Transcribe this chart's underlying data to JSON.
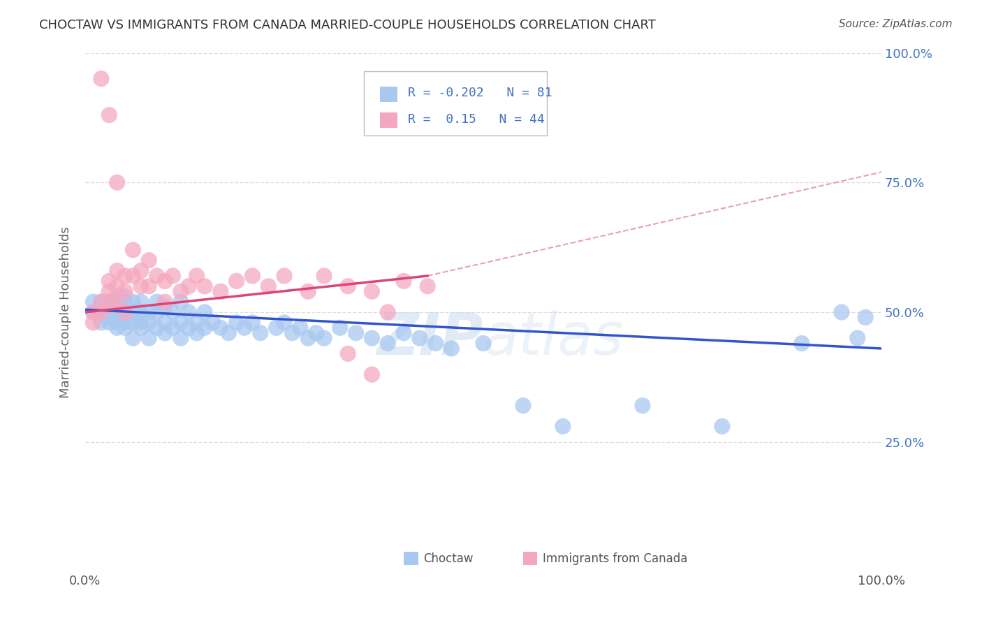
{
  "title": "CHOCTAW VS IMMIGRANTS FROM CANADA MARRIED-COUPLE HOUSEHOLDS CORRELATION CHART",
  "source": "Source: ZipAtlas.com",
  "ylabel": "Married-couple Households",
  "xmin": 0.0,
  "xmax": 1.0,
  "ymin": 0.0,
  "ymax": 1.0,
  "blue_R": -0.202,
  "blue_N": 81,
  "pink_R": 0.15,
  "pink_N": 44,
  "blue_color": "#A8C8F0",
  "pink_color": "#F4A8C0",
  "blue_line_color": "#3355CC",
  "pink_line_color": "#DD4477",
  "dashed_line_color": "#E8A0B0",
  "background_color": "#FFFFFF",
  "grid_color": "#DDDDDD",
  "title_color": "#333333",
  "legend_text_color": "#4472C4",
  "watermark": "ZIPatlas",
  "blue_scatter_x": [
    0.01,
    0.01,
    0.02,
    0.02,
    0.02,
    0.03,
    0.03,
    0.03,
    0.03,
    0.03,
    0.04,
    0.04,
    0.04,
    0.04,
    0.04,
    0.04,
    0.05,
    0.05,
    0.05,
    0.05,
    0.05,
    0.05,
    0.06,
    0.06,
    0.06,
    0.06,
    0.07,
    0.07,
    0.07,
    0.07,
    0.08,
    0.08,
    0.08,
    0.09,
    0.09,
    0.09,
    0.1,
    0.1,
    0.1,
    0.11,
    0.11,
    0.12,
    0.12,
    0.12,
    0.13,
    0.13,
    0.14,
    0.14,
    0.15,
    0.15,
    0.16,
    0.17,
    0.18,
    0.19,
    0.2,
    0.21,
    0.22,
    0.24,
    0.25,
    0.26,
    0.27,
    0.28,
    0.29,
    0.3,
    0.32,
    0.34,
    0.36,
    0.38,
    0.4,
    0.42,
    0.44,
    0.46,
    0.5,
    0.55,
    0.6,
    0.7,
    0.8,
    0.9,
    0.95,
    0.97,
    0.98
  ],
  "blue_scatter_y": [
    0.5,
    0.52,
    0.5,
    0.52,
    0.48,
    0.51,
    0.49,
    0.52,
    0.48,
    0.5,
    0.53,
    0.5,
    0.48,
    0.52,
    0.5,
    0.47,
    0.52,
    0.5,
    0.48,
    0.53,
    0.47,
    0.5,
    0.52,
    0.48,
    0.5,
    0.45,
    0.52,
    0.48,
    0.5,
    0.47,
    0.5,
    0.48,
    0.45,
    0.5,
    0.47,
    0.52,
    0.48,
    0.51,
    0.46,
    0.5,
    0.47,
    0.52,
    0.48,
    0.45,
    0.5,
    0.47,
    0.48,
    0.46,
    0.5,
    0.47,
    0.48,
    0.47,
    0.46,
    0.48,
    0.47,
    0.48,
    0.46,
    0.47,
    0.48,
    0.46,
    0.47,
    0.45,
    0.46,
    0.45,
    0.47,
    0.46,
    0.45,
    0.44,
    0.46,
    0.45,
    0.44,
    0.43,
    0.44,
    0.32,
    0.28,
    0.32,
    0.28,
    0.44,
    0.5,
    0.45,
    0.49
  ],
  "pink_scatter_x": [
    0.01,
    0.01,
    0.02,
    0.02,
    0.03,
    0.03,
    0.03,
    0.04,
    0.04,
    0.04,
    0.05,
    0.05,
    0.05,
    0.06,
    0.06,
    0.07,
    0.07,
    0.08,
    0.08,
    0.09,
    0.1,
    0.1,
    0.11,
    0.12,
    0.13,
    0.14,
    0.15,
    0.17,
    0.19,
    0.21,
    0.23,
    0.25,
    0.28,
    0.3,
    0.33,
    0.36,
    0.4,
    0.43,
    0.02,
    0.03,
    0.04,
    0.33,
    0.36,
    0.38
  ],
  "pink_scatter_y": [
    0.5,
    0.48,
    0.52,
    0.5,
    0.56,
    0.54,
    0.52,
    0.58,
    0.55,
    0.52,
    0.57,
    0.54,
    0.5,
    0.62,
    0.57,
    0.58,
    0.55,
    0.6,
    0.55,
    0.57,
    0.56,
    0.52,
    0.57,
    0.54,
    0.55,
    0.57,
    0.55,
    0.54,
    0.56,
    0.57,
    0.55,
    0.57,
    0.54,
    0.57,
    0.55,
    0.54,
    0.56,
    0.55,
    0.95,
    0.88,
    0.75,
    0.42,
    0.38,
    0.5
  ]
}
